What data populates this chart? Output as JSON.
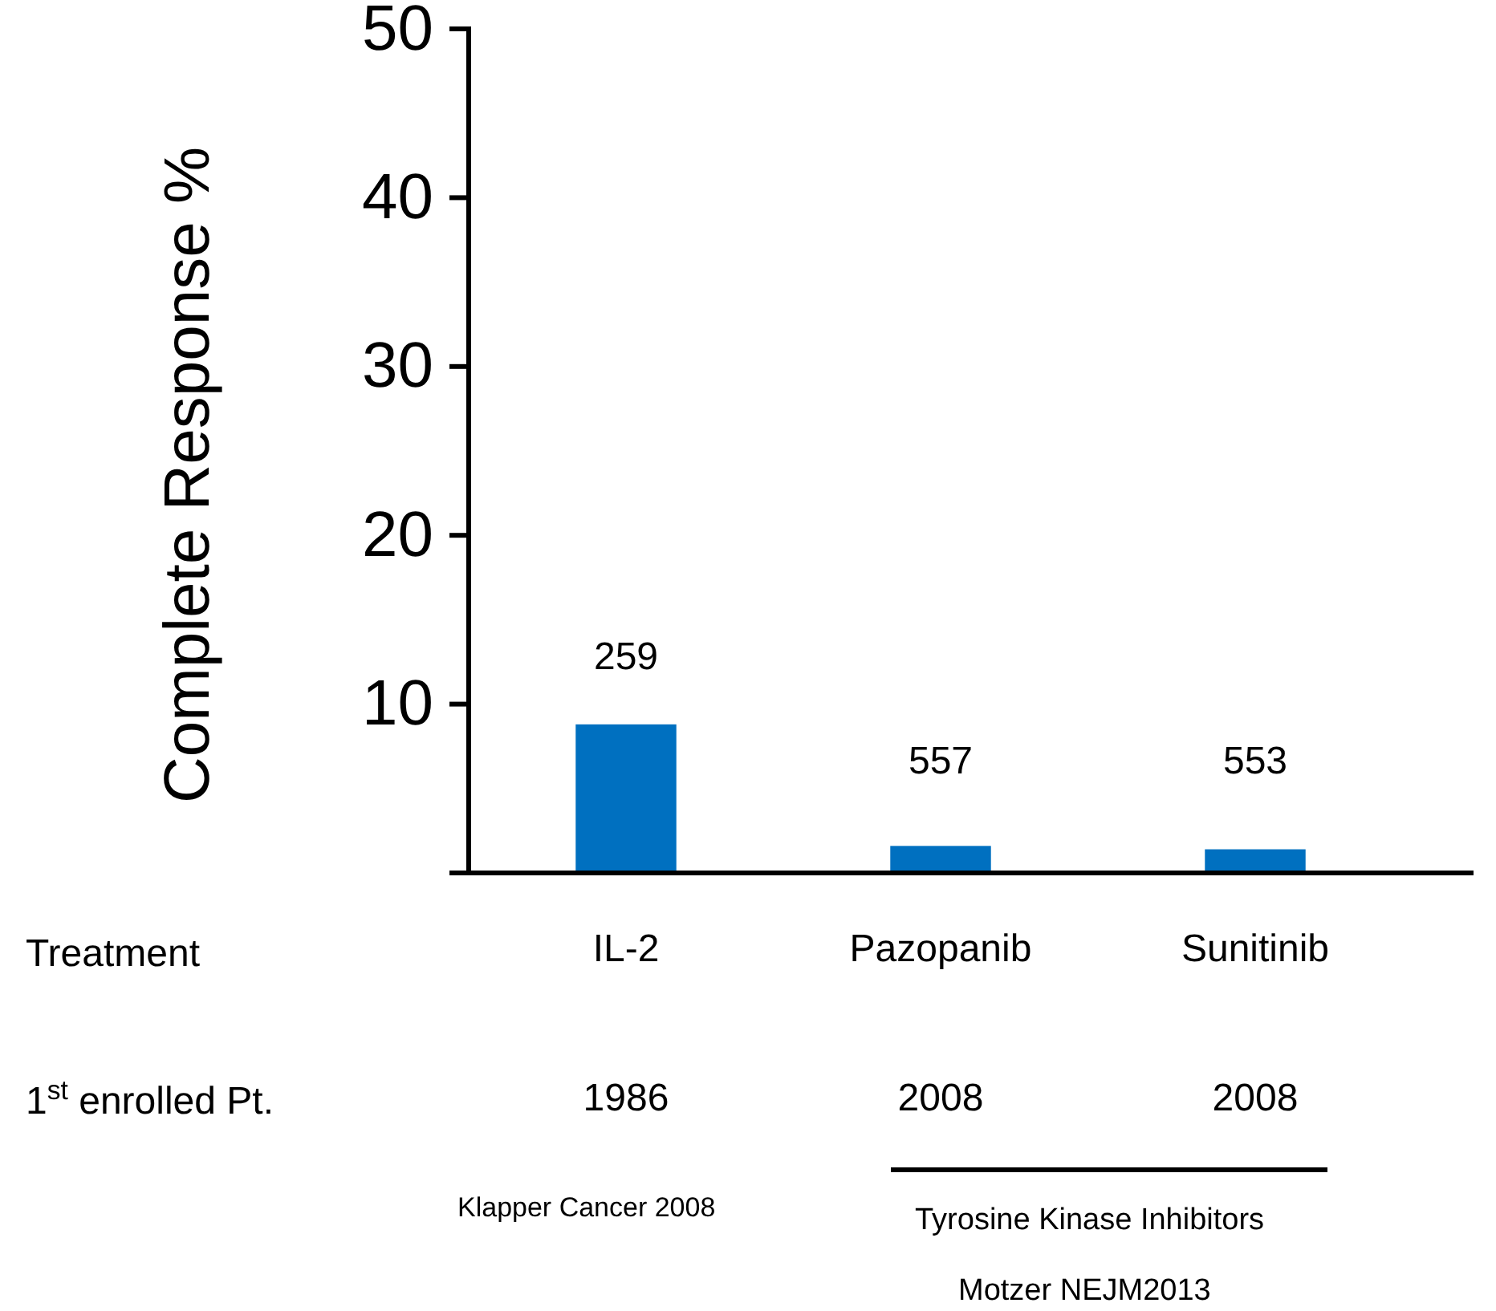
{
  "chart_data": {
    "type": "bar",
    "ylabel": "Complete Response %",
    "xlabel": "Treatment",
    "categories": [
      "IL-2",
      "Pazopanib",
      "Sunitinib"
    ],
    "values": [
      8.8,
      1.6,
      1.4
    ],
    "color": "#0070c0",
    "ylim": [
      0,
      50
    ],
    "yticks": [
      10,
      20,
      30,
      40,
      50
    ],
    "grid": false,
    "annotations": [
      "259",
      "557",
      "553",
      "1$^{st}$ enrolled Pt.",
      "1986",
      "2008",
      "2008",
      "Klapper Cancer 2008",
      "Tyrosine Kinase Inhibitors",
      "Motzer NEJM2013"
    ]
  }
}
